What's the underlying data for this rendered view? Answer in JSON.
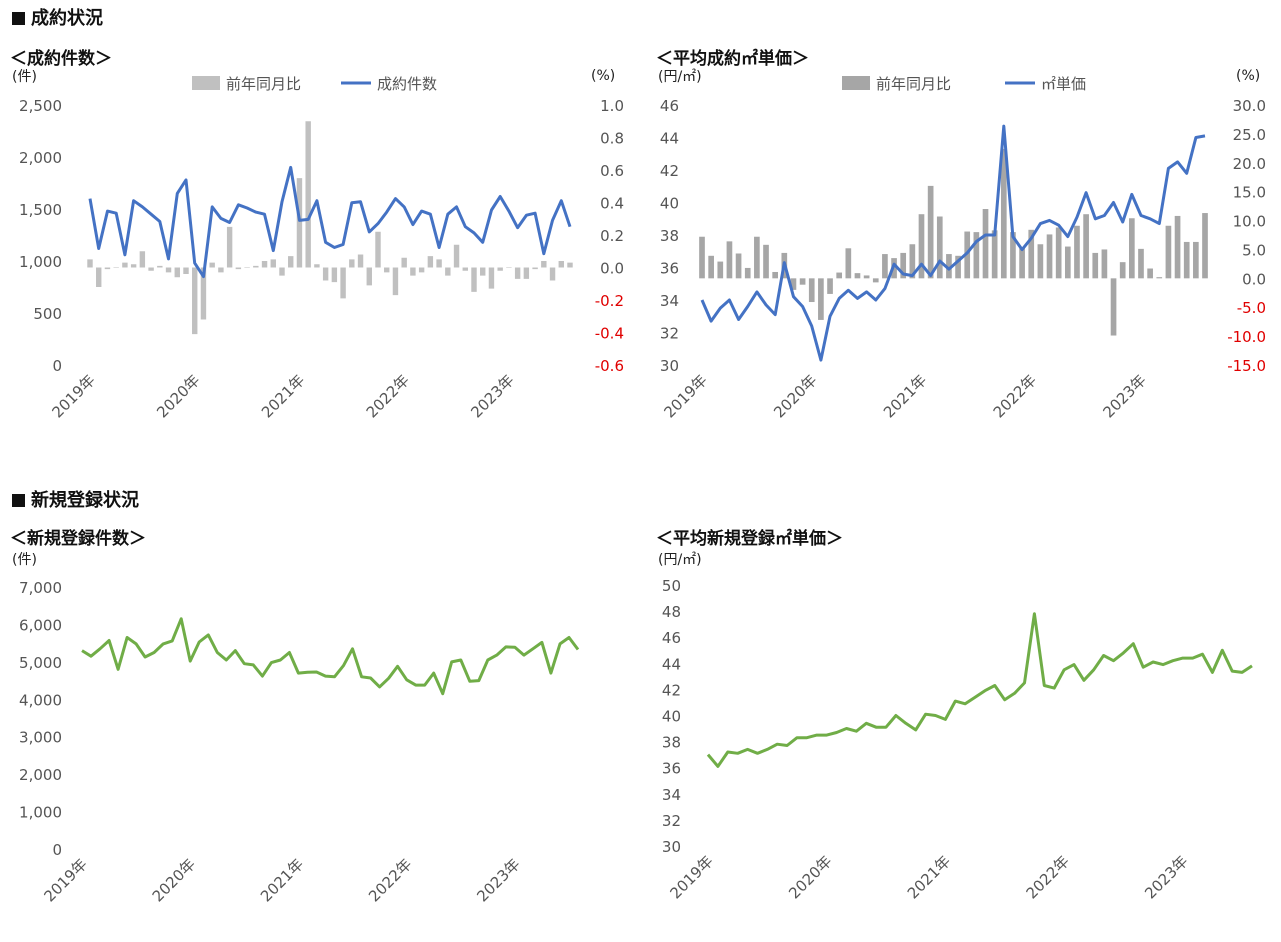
{
  "sections": {
    "contract": "成約状況",
    "registration": "新規登録状況"
  },
  "chart_data": [
    {
      "id": "contract-count",
      "type": "bar+line",
      "title": "＜成約件数＞",
      "ylabel": "(件)",
      "y2label": "(%)",
      "ylim": [
        0,
        2500
      ],
      "yticks": [
        "0",
        "500",
        "1,000",
        "1,500",
        "2,000",
        "2,500"
      ],
      "y2lim": [
        -0.6,
        1.0
      ],
      "y2ticks": [
        "-0.6",
        "-0.4",
        "-0.2",
        "0.0",
        "0.2",
        "0.4",
        "0.6",
        "0.8",
        "1.0"
      ],
      "xticks": [
        {
          "label": "2019年",
          "index": 0
        },
        {
          "label": "2020年",
          "index": 12
        },
        {
          "label": "2021年",
          "index": 24
        },
        {
          "label": "2022年",
          "index": 36
        },
        {
          "label": "2023年",
          "index": 48
        }
      ],
      "legend": {
        "bar": "前年同月比",
        "line": "成約件数"
      },
      "line_color": "#4472c4",
      "bar_color": "#c0c0c0",
      "line_values": [
        1600,
        1120,
        1480,
        1460,
        1060,
        1580,
        1520,
        1450,
        1380,
        1020,
        1650,
        1780,
        980,
        850,
        1520,
        1410,
        1370,
        1540,
        1510,
        1470,
        1450,
        1100,
        1570,
        1900,
        1390,
        1400,
        1580,
        1180,
        1130,
        1160,
        1560,
        1570,
        1280,
        1360,
        1470,
        1600,
        1520,
        1350,
        1480,
        1450,
        1130,
        1450,
        1520,
        1330,
        1270,
        1180,
        1490,
        1620,
        1480,
        1320,
        1440,
        1460,
        1070,
        1390,
        1580,
        1330
      ],
      "bar_values": [
        0.05,
        -0.12,
        -0.01,
        0.0,
        0.03,
        0.02,
        0.1,
        -0.02,
        0.01,
        -0.03,
        -0.06,
        -0.04,
        -0.41,
        -0.32,
        0.03,
        -0.03,
        0.25,
        -0.01,
        0.0,
        0.01,
        0.04,
        0.05,
        -0.05,
        0.07,
        0.55,
        0.9,
        0.02,
        -0.08,
        -0.09,
        -0.19,
        0.05,
        0.08,
        -0.11,
        0.22,
        -0.03,
        -0.17,
        0.06,
        -0.05,
        -0.03,
        0.07,
        0.05,
        -0.05,
        0.14,
        -0.02,
        -0.15,
        -0.05,
        -0.13,
        -0.02,
        0.0,
        -0.07,
        -0.07,
        -0.01,
        0.04,
        -0.08,
        0.04,
        0.03
      ]
    },
    {
      "id": "contract-price",
      "type": "bar+line",
      "title": "＜平均成約㎡単価＞",
      "ylabel": "(円/㎡)",
      "y2label": "(%)",
      "ylim": [
        30,
        46
      ],
      "yticks": [
        "30",
        "32",
        "34",
        "36",
        "38",
        "40",
        "42",
        "44",
        "46"
      ],
      "y2lim": [
        -15,
        30
      ],
      "y2ticks": [
        "-15.0",
        "-10.0",
        "-5.0",
        "0.0",
        "5.0",
        "10.0",
        "15.0",
        "20.0",
        "25.0",
        "30.0"
      ],
      "xticks": [
        {
          "label": "2019年",
          "index": 0
        },
        {
          "label": "2020年",
          "index": 12
        },
        {
          "label": "2021年",
          "index": 24
        },
        {
          "label": "2022年",
          "index": 36
        },
        {
          "label": "2023年",
          "index": 48
        }
      ],
      "legend": {
        "bar": "前年同月比",
        "line": "㎡単価"
      },
      "line_color": "#4472c4",
      "bar_color": "#a6a6a6",
      "line_values": [
        34.0,
        32.7,
        33.5,
        34.0,
        32.8,
        33.6,
        34.5,
        33.7,
        33.1,
        36.3,
        34.2,
        33.6,
        32.4,
        30.3,
        33.0,
        34.1,
        34.6,
        34.1,
        34.5,
        34.0,
        34.7,
        36.2,
        35.6,
        35.5,
        36.2,
        35.5,
        36.4,
        35.9,
        36.4,
        36.9,
        37.6,
        38.0,
        38.0,
        44.7,
        37.9,
        37.1,
        37.8,
        38.7,
        38.9,
        38.6,
        37.9,
        39.1,
        40.6,
        39.0,
        39.2,
        40.0,
        38.8,
        40.5,
        39.2,
        39.0,
        38.7,
        42.1,
        42.5,
        41.8,
        44.0,
        44.1
      ],
      "bar_values": [
        7.2,
        3.9,
        2.9,
        6.4,
        4.3,
        1.8,
        7.2,
        5.8,
        1.1,
        4.4,
        -2.0,
        -1.1,
        -4.1,
        -7.2,
        -2.7,
        1.0,
        5.2,
        0.9,
        0.5,
        -0.7,
        4.2,
        3.5,
        4.4,
        5.9,
        11.1,
        16.0,
        10.7,
        4.2,
        3.9,
        8.1,
        8.0,
        12.0,
        8.3,
        22.4,
        8.0,
        5.2,
        8.4,
        5.9,
        7.6,
        8.8,
        5.5,
        9.1,
        11.1,
        4.4,
        5.0,
        -9.9,
        2.8,
        10.4,
        5.1,
        1.7,
        0.2,
        9.1,
        10.8,
        6.3,
        6.3,
        11.3
      ]
    },
    {
      "id": "registration-count",
      "type": "line",
      "title": "＜新規登録件数＞",
      "ylabel": "(件)",
      "ylim": [
        0,
        7000
      ],
      "yticks": [
        "0",
        "1,000",
        "2,000",
        "3,000",
        "4,000",
        "5,000",
        "6,000",
        "7,000"
      ],
      "xticks": [
        {
          "label": "2019年",
          "index": 0
        },
        {
          "label": "2020年",
          "index": 12
        },
        {
          "label": "2021年",
          "index": 24
        },
        {
          "label": "2022年",
          "index": 36
        },
        {
          "label": "2023年",
          "index": 48
        }
      ],
      "line_color": "#70ad47",
      "values": [
        5300,
        5150,
        5350,
        5570,
        4800,
        5650,
        5480,
        5130,
        5250,
        5480,
        5560,
        6150,
        5020,
        5530,
        5720,
        5250,
        5050,
        5300,
        4950,
        4920,
        4620,
        4980,
        5050,
        5250,
        4700,
        4720,
        4730,
        4620,
        4600,
        4900,
        5350,
        4600,
        4570,
        4330,
        4560,
        4880,
        4520,
        4380,
        4380,
        4700,
        4150,
        5000,
        5050,
        4480,
        4500,
        5050,
        5180,
        5400,
        5390,
        5180,
        5350,
        5520,
        4700,
        5480,
        5650,
        5330
      ]
    },
    {
      "id": "registration-price",
      "type": "line",
      "title": "＜平均新規登録㎡単価＞",
      "ylabel": "(円/㎡)",
      "ylim": [
        30,
        50
      ],
      "yticks": [
        "30",
        "32",
        "34",
        "36",
        "38",
        "40",
        "42",
        "44",
        "46",
        "48",
        "50"
      ],
      "xticks": [
        {
          "label": "2019年",
          "index": 0
        },
        {
          "label": "2020年",
          "index": 12
        },
        {
          "label": "2021年",
          "index": 24
        },
        {
          "label": "2022年",
          "index": 36
        },
        {
          "label": "2023年",
          "index": 48
        }
      ],
      "line_color": "#70ad47",
      "values": [
        37.0,
        36.1,
        37.2,
        37.1,
        37.4,
        37.1,
        37.4,
        37.8,
        37.7,
        38.3,
        38.3,
        38.5,
        38.5,
        38.7,
        39.0,
        38.8,
        39.4,
        39.1,
        39.1,
        40.0,
        39.4,
        38.9,
        40.1,
        40.0,
        39.7,
        41.1,
        40.9,
        41.4,
        41.9,
        42.3,
        41.2,
        41.7,
        42.5,
        47.8,
        42.3,
        42.1,
        43.5,
        43.9,
        42.7,
        43.5,
        44.6,
        44.2,
        44.8,
        45.5,
        43.7,
        44.1,
        43.9,
        44.2,
        44.4,
        44.4,
        44.7,
        43.3,
        45.0,
        43.4,
        43.3,
        43.8
      ]
    }
  ]
}
